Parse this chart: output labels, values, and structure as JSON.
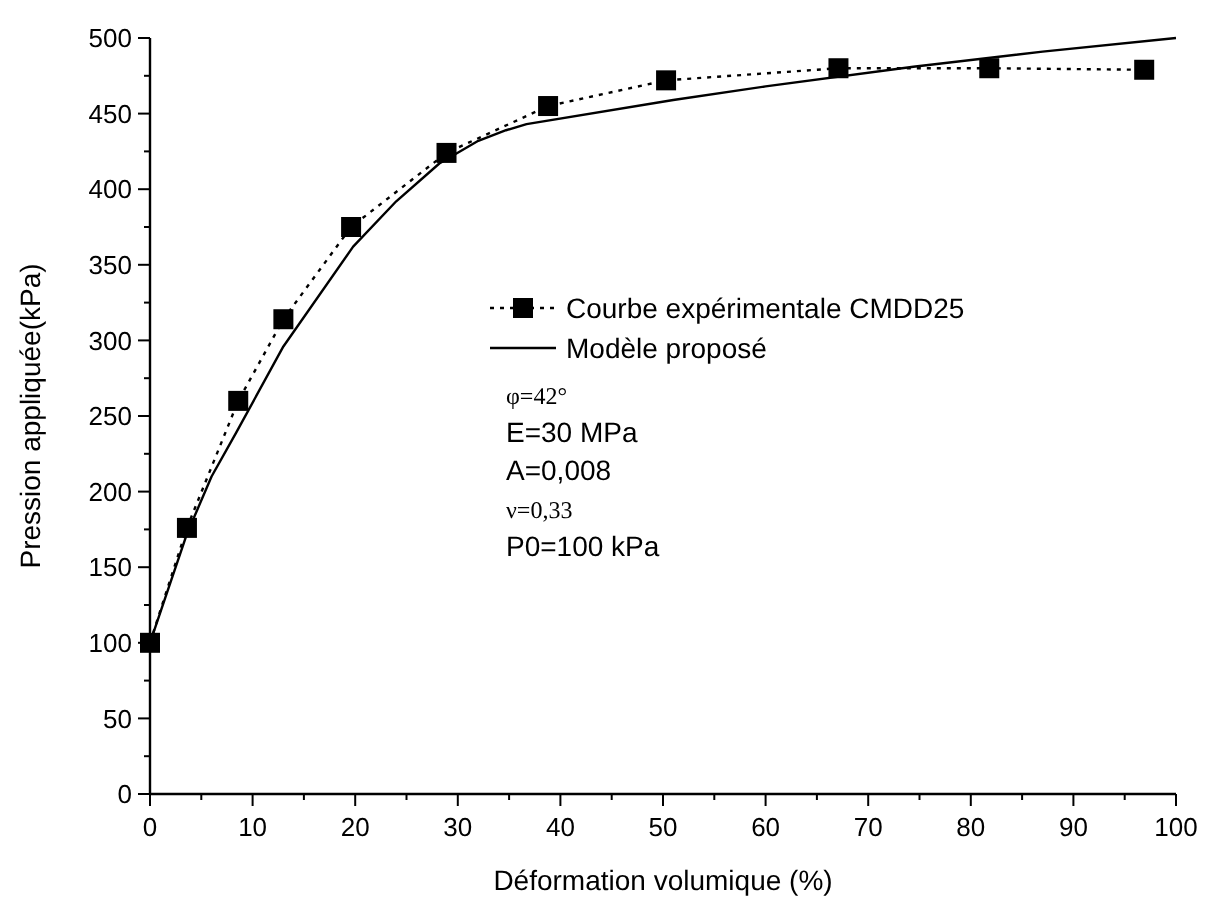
{
  "chart_data": {
    "type": "line",
    "xlabel": "Déformation volumique (%)",
    "ylabel": "Pression appliquée(kPa)",
    "xlim": [
      0,
      100
    ],
    "ylim": [
      0,
      500
    ],
    "xticks": [
      0,
      {
        "value": 5,
        "label": null
      },
      10,
      {
        "value": 15,
        "label": null
      },
      20,
      {
        "value": 25,
        "label": null
      },
      30,
      {
        "value": 35,
        "label": null
      },
      40,
      {
        "value": 45,
        "label": null
      },
      50,
      {
        "value": 55,
        "label": null
      },
      60,
      {
        "value": 65,
        "label": null
      },
      70,
      {
        "value": 75,
        "label": null
      },
      80,
      {
        "value": 85,
        "label": null
      },
      90,
      {
        "value": 95,
        "label": null
      },
      100
    ],
    "yticks": [
      0,
      {
        "value": 25,
        "label": null
      },
      50,
      {
        "value": 75,
        "label": null
      },
      100,
      {
        "value": 125,
        "label": null
      },
      150,
      {
        "value": 175,
        "label": null
      },
      200,
      {
        "value": 225,
        "label": null
      },
      250,
      {
        "value": 275,
        "label": null
      },
      300,
      {
        "value": 325,
        "label": null
      },
      350,
      {
        "value": 375,
        "label": null
      },
      400,
      {
        "value": 425,
        "label": null
      },
      450,
      {
        "value": 475,
        "label": null
      },
      500
    ],
    "grid": false,
    "legend": "right",
    "series": [
      {
        "name": "Courbe expérimentale CMDD25",
        "color": "#000000",
        "marker": "square",
        "line_style": "dotted",
        "x": [
          0,
          3.6,
          8.6,
          13,
          19.6,
          28.9,
          38.8,
          50.3,
          67.1,
          81.8,
          96.9
        ],
        "values": [
          100,
          176,
          260,
          314,
          375,
          424,
          455,
          472,
          480,
          480,
          479
        ]
      },
      {
        "name": "Modèle proposé",
        "color": "#000000",
        "marker": "none",
        "line_style": "solid",
        "x": [
          0,
          1.5,
          3.6,
          6,
          8.4,
          13,
          19.8,
          24,
          28.2,
          32,
          34.7,
          36.7,
          51,
          60,
          74.4,
          87,
          100
        ],
        "values": [
          100,
          130,
          172,
          210,
          239,
          296,
          362,
          392,
          417,
          432,
          439,
          443,
          459,
          468,
          481,
          491,
          500
        ]
      }
    ],
    "annotations": [
      "φ=42°",
      "E=30 MPa",
      "A=0,008",
      "ν=0,33",
      "P0=100 kPa"
    ]
  }
}
